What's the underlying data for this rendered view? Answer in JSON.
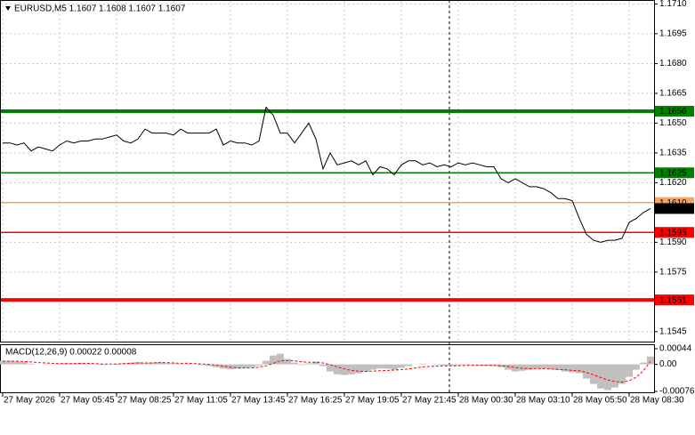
{
  "chart_data": [
    {
      "type": "line",
      "title": "EURUSD,M5  1.1607 1.1608 1.1607 1.1607",
      "categories": [
        "27 May 2026",
        null,
        null,
        null,
        null,
        null,
        null,
        null,
        "27 May 05:45",
        null,
        null,
        null,
        null,
        null,
        null,
        null,
        "27 May 08:25",
        null,
        null,
        null,
        null,
        null,
        null,
        null,
        "27 May 11:05",
        null,
        null,
        null,
        null,
        null,
        null,
        null,
        "27 May 13:45",
        null,
        null,
        null,
        null,
        null,
        null,
        null,
        "27 May 16:25",
        null,
        null,
        null,
        null,
        null,
        null,
        null,
        "27 May 19:05",
        null,
        null,
        null,
        null,
        null,
        null,
        null,
        "27 May 21:45",
        null,
        null,
        null,
        null,
        null,
        null,
        null,
        "28 May 00:30",
        null,
        null,
        null,
        null,
        null,
        null,
        null,
        "28 May 03:10",
        null,
        null,
        null,
        null,
        null,
        null,
        null,
        "28 May 05:50",
        null,
        null,
        null,
        null,
        null,
        null,
        null,
        "28 May 08:30",
        null,
        null,
        null
      ],
      "values": [
        1.164,
        1.164,
        1.1639,
        1.164,
        1.1636,
        1.1638,
        1.1637,
        1.1636,
        1.1639,
        1.1641,
        1.164,
        1.1641,
        1.1641,
        1.1642,
        1.1642,
        1.1643,
        1.1644,
        1.1641,
        1.164,
        1.1642,
        1.1647,
        1.1645,
        1.1645,
        1.1645,
        1.1644,
        1.1647,
        1.1645,
        1.1645,
        1.1645,
        1.1645,
        1.1647,
        1.1639,
        1.1641,
        1.164,
        1.164,
        1.1639,
        1.1641,
        1.1658,
        1.1654,
        1.1645,
        1.1645,
        1.164,
        1.1645,
        1.165,
        1.1642,
        1.1627,
        1.1635,
        1.1629,
        1.163,
        1.1631,
        1.1629,
        1.1631,
        1.1624,
        1.1628,
        1.1627,
        1.1624,
        1.1629,
        1.1631,
        1.1631,
        1.1629,
        1.163,
        1.1628,
        1.1629,
        1.1628,
        1.163,
        1.1629,
        1.163,
        1.1629,
        1.1628,
        1.1628,
        1.1622,
        1.162,
        1.1622,
        1.162,
        1.1618,
        1.1618,
        1.1617,
        1.1615,
        1.1612,
        1.1612,
        1.1611,
        1.1602,
        1.1594,
        1.1591,
        1.159,
        1.1591,
        1.1591,
        1.1592,
        1.16,
        1.1602,
        1.1605,
        1.1607
      ],
      "color": "#000000",
      "ylim": [
        1.154,
        1.1712
      ],
      "yticks": [
        {
          "value": 1.171,
          "label": "1.1710"
        },
        1.1695,
        {
          "value": 1.168,
          "label": "1.1680"
        },
        1.1665,
        {
          "value": 1.165,
          "label": "1.1650"
        },
        1.1635,
        {
          "value": 1.162,
          "label": "1.1620"
        },
        {
          "value": 1.159,
          "label": "1.1590"
        },
        1.1575,
        1.1545
      ],
      "grid": true,
      "levels": [
        {
          "value": 1.1656,
          "label": "1.1656",
          "color": "#008000",
          "style": "thick"
        },
        {
          "value": 1.1625,
          "label": "1.1625",
          "color": "#008000",
          "style": "thin"
        },
        {
          "value": 1.161,
          "label": "1.1610",
          "color": "#f4a460",
          "style": "thin"
        },
        {
          "value": 1.1595,
          "label": "1.1595",
          "color": "#ff0000",
          "style": "thin"
        },
        {
          "value": 1.1561,
          "label": "1.1561",
          "color": "#ff0000",
          "style": "thick"
        }
      ],
      "last_price": {
        "value": 1.1607,
        "label": "1.1607"
      }
    },
    {
      "type": "macd",
      "title": "MACD(12,26,9) 0.00022 0.00008",
      "series": [
        {
          "type": "bar",
          "color": "#c0c0c0",
          "values": [
            0.0001,
            0.0001,
            8e-05,
            6e-05,
            2e-05,
            0,
            0,
            0,
            2e-05,
            3e-05,
            3e-05,
            4e-05,
            2e-05,
            0,
            -2e-05,
            0,
            2e-05,
            3e-05,
            5e-05,
            6e-05,
            4e-05,
            5e-05,
            6e-05,
            4e-05,
            3e-05,
            2e-05,
            1e-05,
            0,
            -2e-05,
            -5e-05,
            -8e-05,
            -0.00012,
            -0.00014,
            -0.00012,
            -0.0001,
            -8e-05,
            -3e-05,
            0.0001,
            0.00025,
            0.0003,
            0.00015,
            5e-05,
            -2e-05,
            3e-05,
            8e-05,
            -5e-05,
            -0.0002,
            -0.00028,
            -0.0003,
            -0.00028,
            -0.00025,
            -0.0002,
            -0.00015,
            -0.00012,
            -0.00012,
            -0.00015,
            -0.0001,
            -5e-05,
            0,
            2e-05,
            0,
            -2e-05,
            -3e-05,
            -4e-05,
            -3e-05,
            -2e-05,
            -2e-05,
            -3e-05,
            -4e-05,
            -5e-05,
            -8e-05,
            -0.00015,
            -0.0002,
            -0.00018,
            -0.00015,
            -0.00012,
            -0.00012,
            -0.00014,
            -0.00016,
            -0.0002,
            -0.00022,
            -0.00025,
            -0.0004,
            -0.00055,
            -0.00068,
            -0.00072,
            -0.00065,
            -0.00055,
            -0.00035,
            -0.00015,
            5e-05,
            0.00022
          ]
        },
        {
          "type": "line",
          "color": "#ff0000",
          "values": [
            9e-05,
            9e-05,
            9e-05,
            8e-05,
            7e-05,
            5e-05,
            4e-05,
            3e-05,
            2e-05,
            2e-05,
            2e-05,
            3e-05,
            3e-05,
            2e-05,
            1e-05,
            1e-05,
            1e-05,
            2e-05,
            3e-05,
            4e-05,
            4e-05,
            4e-05,
            5e-05,
            5e-05,
            4e-05,
            3e-05,
            3e-05,
            2e-05,
            1e-05,
            0,
            -2e-05,
            -5e-05,
            -8e-05,
            -0.0001,
            -0.0001,
            -0.0001,
            -8e-05,
            -4e-05,
            3e-05,
            0.0001,
            0.00011,
            0.0001,
            7e-05,
            6e-05,
            6e-05,
            4e-05,
            -1e-05,
            -7e-05,
            -0.00013,
            -0.00017,
            -0.00019,
            -0.0002,
            -0.00019,
            -0.00018,
            -0.00017,
            -0.00016,
            -0.00015,
            -0.00013,
            -0.0001,
            -7e-05,
            -6e-05,
            -5e-05,
            -4e-05,
            -4e-05,
            -4e-05,
            -3e-05,
            -3e-05,
            -3e-05,
            -3e-05,
            -3e-05,
            -4e-05,
            -6e-05,
            -9e-05,
            -0.00011,
            -0.00012,
            -0.00012,
            -0.00012,
            -0.00013,
            -0.00014,
            -0.00015,
            -0.00017,
            -0.00018,
            -0.00023,
            -0.00029,
            -0.00037,
            -0.00044,
            -0.00048,
            -0.0005,
            -0.00046,
            -0.00036,
            -0.00018,
            8e-05
          ]
        }
      ],
      "ylim": [
        -0.00076,
        0.00044
      ],
      "yticks": [
        0.00044,
        {
          "value": 0,
          "label": "0.00"
        },
        -0.00076
      ]
    }
  ]
}
